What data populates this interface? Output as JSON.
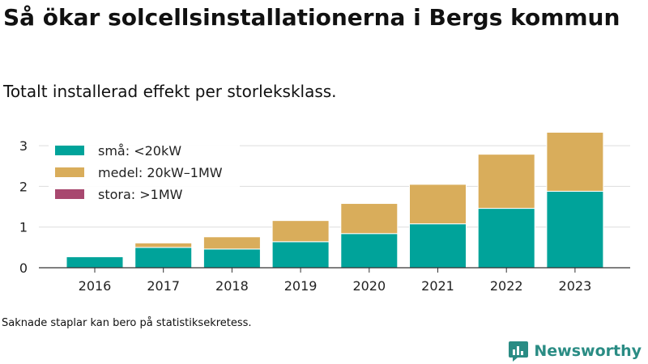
{
  "title": "Så ökar solcellsinstallationerna i Bergs kommun",
  "subtitle": "Totalt installerad effekt per storleksklass.",
  "note": "Saknade staplar kan bero på statistiksekretess.",
  "brand": {
    "name": "Newsworthy",
    "icon": "newsworthy-logo-icon",
    "color": "#2a8c84"
  },
  "colors": {
    "small": "#00a39a",
    "medium": "#d9ad5b",
    "large": "#a8486f",
    "grid": "#dddddd"
  },
  "chart_data": {
    "type": "bar",
    "stacked": true,
    "categories": [
      "2016",
      "2017",
      "2018",
      "2019",
      "2020",
      "2021",
      "2022",
      "2023"
    ],
    "series": [
      {
        "name": "små: <20kW",
        "color": "#00a39a",
        "values": [
          0.27,
          0.5,
          0.46,
          0.64,
          0.84,
          1.08,
          1.46,
          1.88
        ]
      },
      {
        "name": "medel: 20kW–1MW",
        "color": "#d9ad5b",
        "values": [
          0,
          0.11,
          0.3,
          0.52,
          0.74,
          0.97,
          1.33,
          1.45
        ]
      },
      {
        "name": "stora: >1MW",
        "color": "#a8486f",
        "values": [
          0,
          0,
          0,
          0,
          0,
          0,
          0,
          0
        ]
      }
    ],
    "yticks": [
      0,
      1,
      2,
      3
    ],
    "ylim": [
      0,
      3.4
    ],
    "xlabel": "",
    "ylabel": "",
    "grid": true,
    "legend_position": "top-left"
  }
}
